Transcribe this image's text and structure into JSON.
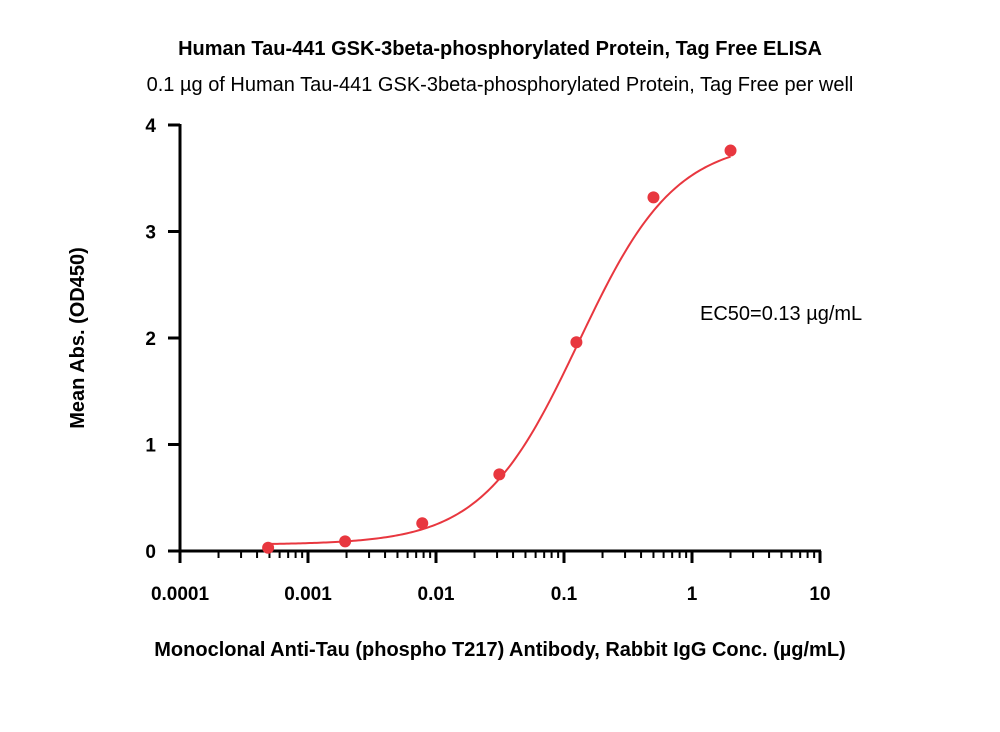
{
  "chart_data": {
    "type": "scatter",
    "title": "Human Tau-441 GSK-3beta-phosphorylated Protein, Tag Free ELISA",
    "subtitle": "0.1 µg of Human Tau-441 GSK-3beta-phosphorylated Protein, Tag Free per well",
    "xlabel": "Monoclonal Anti-Tau (phospho T217) Antibody, Rabbit IgG Conc. (µg/mL)",
    "ylabel": "Mean Abs. (OD450)",
    "xscale": "log",
    "xlim": [
      0.0001,
      10
    ],
    "ylim": [
      0,
      4
    ],
    "x_ticks": [
      0.0001,
      0.001,
      0.01,
      0.1,
      1,
      10
    ],
    "x_tick_labels": [
      "0.0001",
      "0.001",
      "0.01",
      "0.1",
      "1",
      "10"
    ],
    "y_ticks": [
      0,
      1,
      2,
      3,
      4
    ],
    "y_tick_labels": [
      "0",
      "1",
      "2",
      "3",
      "4"
    ],
    "grid": false,
    "series": [
      {
        "color": "#e8373f",
        "x": [
          0.000488,
          0.00195,
          0.00781,
          0.03125,
          0.125,
          0.5,
          2
        ],
        "y": [
          0.03,
          0.09,
          0.26,
          0.72,
          1.96,
          3.32,
          3.76
        ],
        "fit": "4PL",
        "fit_params": {
          "bottom": 0.06,
          "top": 3.86,
          "ec50": 0.13,
          "hill": 1.15
        }
      }
    ],
    "annotations": [
      {
        "text": "EC50=0.13 µg/mL"
      }
    ]
  }
}
